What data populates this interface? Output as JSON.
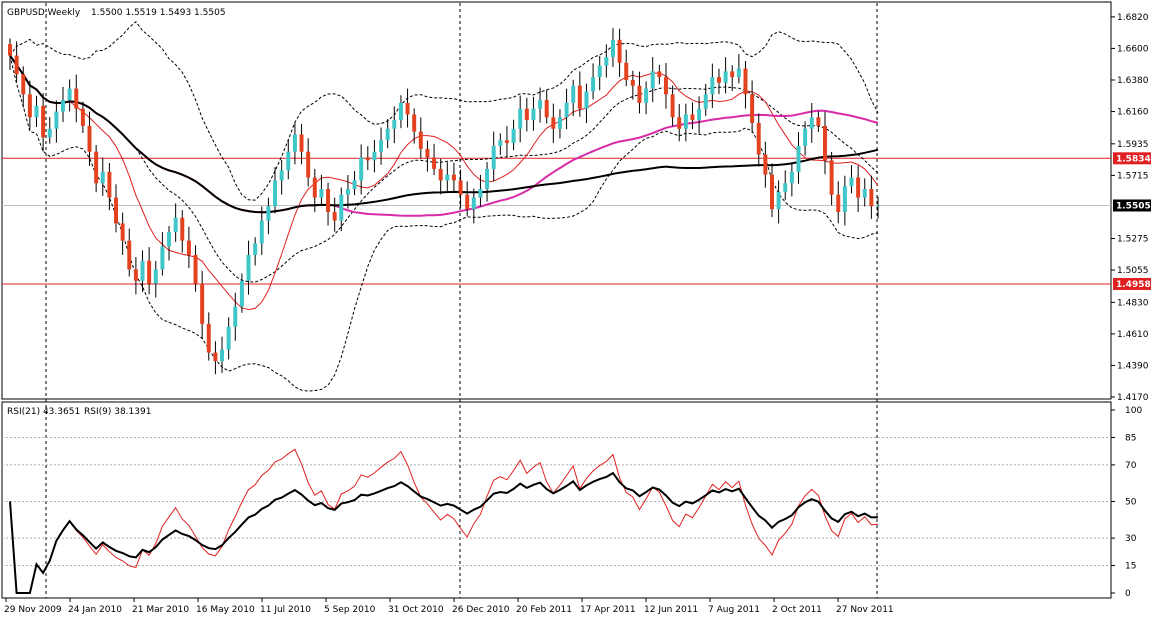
{
  "header": {
    "symbol": "GBPUSD,Weekly",
    "ohlc": "1.5500 1.5519 1.5493 1.5505"
  },
  "rsi_header": {
    "rsi21": "RSI(21) 43.3651",
    "rsi9": "RSI(9) 38.1391"
  },
  "colors": {
    "background": "#ffffff",
    "frame": "#000000",
    "bull_candle": "#3ec6c9",
    "bear_candle": "#e4421f",
    "bollinger": "#000000",
    "sma_fast": "#e02020",
    "sma_mid": "#d92ba7",
    "sma_slow": "#000000",
    "hline": "#e02020",
    "current_price_line": "#c0c0c0",
    "label_red_bg": "#e02020",
    "label_current_bg": "#000000",
    "rsi21": "#000000",
    "rsi9": "#e02020",
    "rsi_levels": "#b0b0b0"
  },
  "chart_data": [
    {
      "type": "candlestick",
      "title": "GBPUSD,Weekly",
      "ylim": [
        1.417,
        1.684
      ],
      "y_ticks": [
        "1.6820",
        "1.6600",
        "1.6380",
        "1.6160",
        "1.5935",
        "1.5715",
        "1.5275",
        "1.5055",
        "1.4830",
        "1.4610",
        "1.4390",
        "1.4170"
      ],
      "x_ticks": [
        "29 Nov 2009",
        "24 Jan 2010",
        "21 Mar 2010",
        "16 May 2010",
        "11 Jul 2010",
        "5 Sep 2010",
        "31 Oct 2010",
        "26 Dec 2010",
        "20 Feb 2011",
        "17 Apr 2011",
        "12 Jun 2011",
        "7 Aug 2011",
        "2 Oct 2011",
        "27 Nov 2011"
      ],
      "horizontal_lines": [
        {
          "value": 1.5834,
          "label": "1.5834"
        },
        {
          "value": 1.4958,
          "label": "1.4958"
        }
      ],
      "current_price": {
        "value": 1.5505,
        "label": "1.5505"
      },
      "closes": [
        1.655,
        1.642,
        1.628,
        1.612,
        1.62,
        1.598,
        1.604,
        1.616,
        1.624,
        1.632,
        1.618,
        1.606,
        1.588,
        1.566,
        1.574,
        1.556,
        1.538,
        1.526,
        1.506,
        1.498,
        1.512,
        1.496,
        1.506,
        1.522,
        1.532,
        1.542,
        1.526,
        1.516,
        1.496,
        1.468,
        1.448,
        1.442,
        1.45,
        1.466,
        1.48,
        1.498,
        1.516,
        1.524,
        1.54,
        1.55,
        1.568,
        1.575,
        1.588,
        1.6,
        1.588,
        1.57,
        1.556,
        1.562,
        1.546,
        1.54,
        1.558,
        1.562,
        1.568,
        1.584,
        1.582,
        1.588,
        1.596,
        1.604,
        1.61,
        1.622,
        1.614,
        1.602,
        1.59,
        1.584,
        1.576,
        1.568,
        1.572,
        1.568,
        1.558,
        1.548,
        1.556,
        1.562,
        1.576,
        1.592,
        1.596,
        1.594,
        1.604,
        1.618,
        1.61,
        1.618,
        1.624,
        1.612,
        1.604,
        1.612,
        1.622,
        1.634,
        1.618,
        1.63,
        1.64,
        1.648,
        1.654,
        1.666,
        1.65,
        1.638,
        1.634,
        1.622,
        1.632,
        1.644,
        1.64,
        1.628,
        1.612,
        1.604,
        1.614,
        1.61,
        1.618,
        1.628,
        1.64,
        1.636,
        1.644,
        1.64,
        1.646,
        1.628,
        1.608,
        1.586,
        1.572,
        1.548,
        1.56,
        1.566,
        1.574,
        1.592,
        1.604,
        1.612,
        1.606,
        1.582,
        1.558,
        1.546,
        1.564,
        1.57,
        1.556,
        1.562,
        1.55,
        1.5505
      ],
      "series": [
        {
          "name": "RSI(21)",
          "value": 43.3651
        },
        {
          "name": "RSI(9)",
          "value": 38.1391
        }
      ]
    },
    {
      "type": "line",
      "title": "RSI(21) 43.3651 RSI(9) 38.1391",
      "ylim": [
        0,
        100
      ],
      "y_ticks": [
        "100",
        "85",
        "70",
        "50",
        "30",
        "15",
        "0"
      ],
      "levels": [
        85,
        70,
        50,
        30,
        15
      ]
    }
  ]
}
